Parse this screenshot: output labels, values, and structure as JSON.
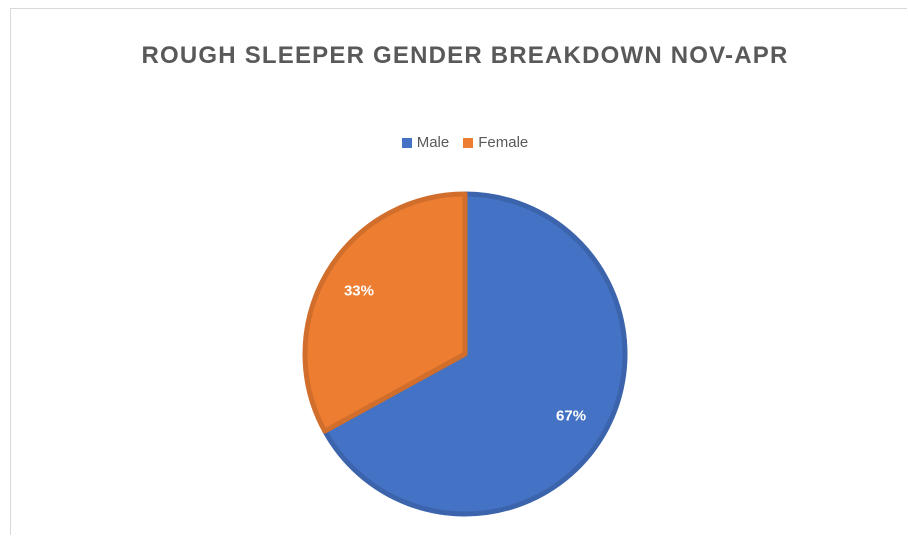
{
  "chart_data": {
    "type": "pie",
    "title": "ROUGH SLEEPER GENDER BREAKDOWN NOV-APR",
    "legend": "top",
    "series": [
      {
        "name": "Male",
        "color": "#4472c4",
        "values": [
          67
        ],
        "value_labels": [
          "67%"
        ]
      },
      {
        "name": "Female",
        "color": "#ed7d31",
        "values": [
          33
        ],
        "value_labels": [
          "33%"
        ]
      }
    ]
  }
}
